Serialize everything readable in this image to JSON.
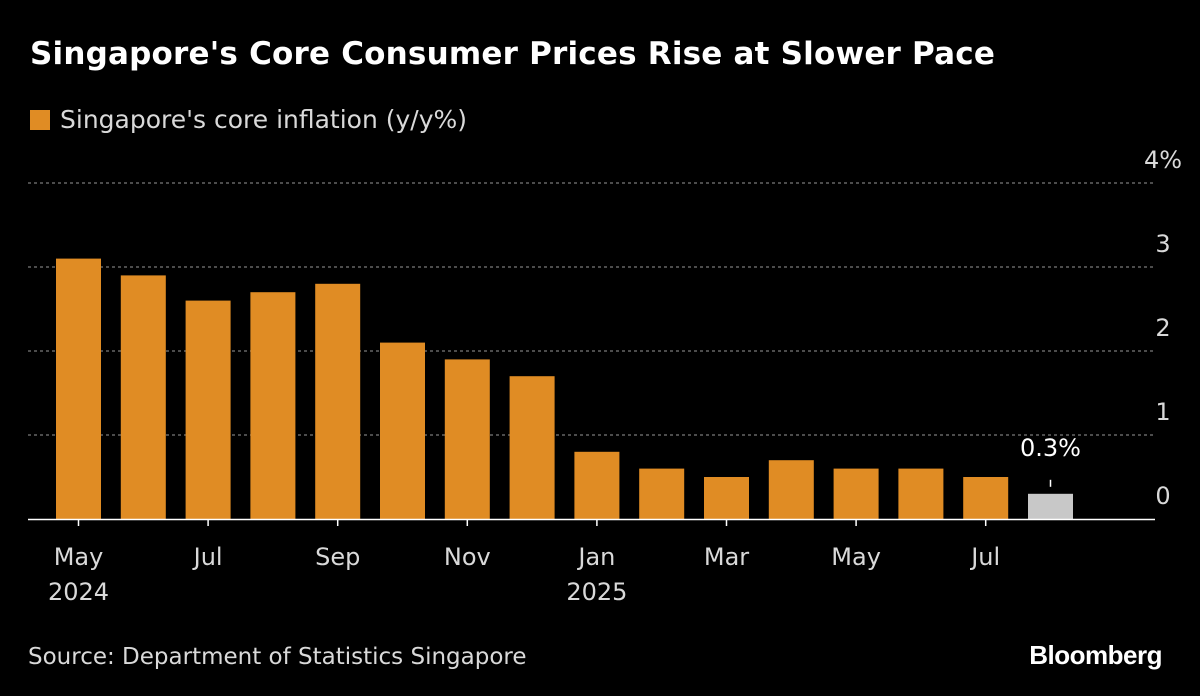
{
  "chart_data": {
    "type": "bar",
    "title": "Singapore's Core Consumer Prices Rise at Slower Pace",
    "legend": [
      {
        "name": "Singapore's core inflation (y/y%)",
        "color": "#e08c24"
      }
    ],
    "categories": [
      "May 2024",
      "Jun 2024",
      "Jul 2024",
      "Aug 2024",
      "Sep 2024",
      "Oct 2024",
      "Nov 2024",
      "Dec 2024",
      "Jan 2025",
      "Feb 2025",
      "Mar 2025",
      "Apr 2025",
      "May 2025",
      "Jun 2025",
      "Jul 2025",
      "Aug 2025"
    ],
    "series": [
      {
        "name": "Singapore's core inflation (y/y%)",
        "values": [
          3.1,
          2.9,
          2.6,
          2.7,
          2.8,
          2.1,
          1.9,
          1.7,
          0.8,
          0.6,
          0.5,
          0.7,
          0.6,
          0.6,
          0.5,
          0.3
        ]
      }
    ],
    "bar_colors": [
      "#e08c24",
      "#e08c24",
      "#e08c24",
      "#e08c24",
      "#e08c24",
      "#e08c24",
      "#e08c24",
      "#e08c24",
      "#e08c24",
      "#e08c24",
      "#e08c24",
      "#e08c24",
      "#e08c24",
      "#e08c24",
      "#e08c24",
      "#c8c8c8"
    ],
    "ylim": [
      0,
      4
    ],
    "y_ticks": [
      {
        "value": 0,
        "label": "0"
      },
      {
        "value": 1,
        "label": "1"
      },
      {
        "value": 2,
        "label": "2"
      },
      {
        "value": 3,
        "label": "3"
      },
      {
        "value": 4,
        "label": "4%"
      }
    ],
    "x_ticks": [
      {
        "index": 0,
        "label": "May",
        "sublabel": "2024"
      },
      {
        "index": 2,
        "label": "Jul",
        "sublabel": ""
      },
      {
        "index": 4,
        "label": "Sep",
        "sublabel": ""
      },
      {
        "index": 6,
        "label": "Nov",
        "sublabel": ""
      },
      {
        "index": 8,
        "label": "Jan",
        "sublabel": "2025"
      },
      {
        "index": 10,
        "label": "Mar",
        "sublabel": ""
      },
      {
        "index": 12,
        "label": "May",
        "sublabel": ""
      },
      {
        "index": 14,
        "label": "Jul",
        "sublabel": ""
      }
    ],
    "annotation": {
      "index": 15,
      "label": "0.3%"
    },
    "grid": true,
    "xlabel": "",
    "ylabel": ""
  },
  "source": "Source: Department of Statistics Singapore",
  "brand": "Bloomberg",
  "colors": {
    "background": "#000000",
    "bar": "#e08c24",
    "highlight": "#c8c8c8",
    "grid": "#666666",
    "text": "#d9d9d9"
  }
}
